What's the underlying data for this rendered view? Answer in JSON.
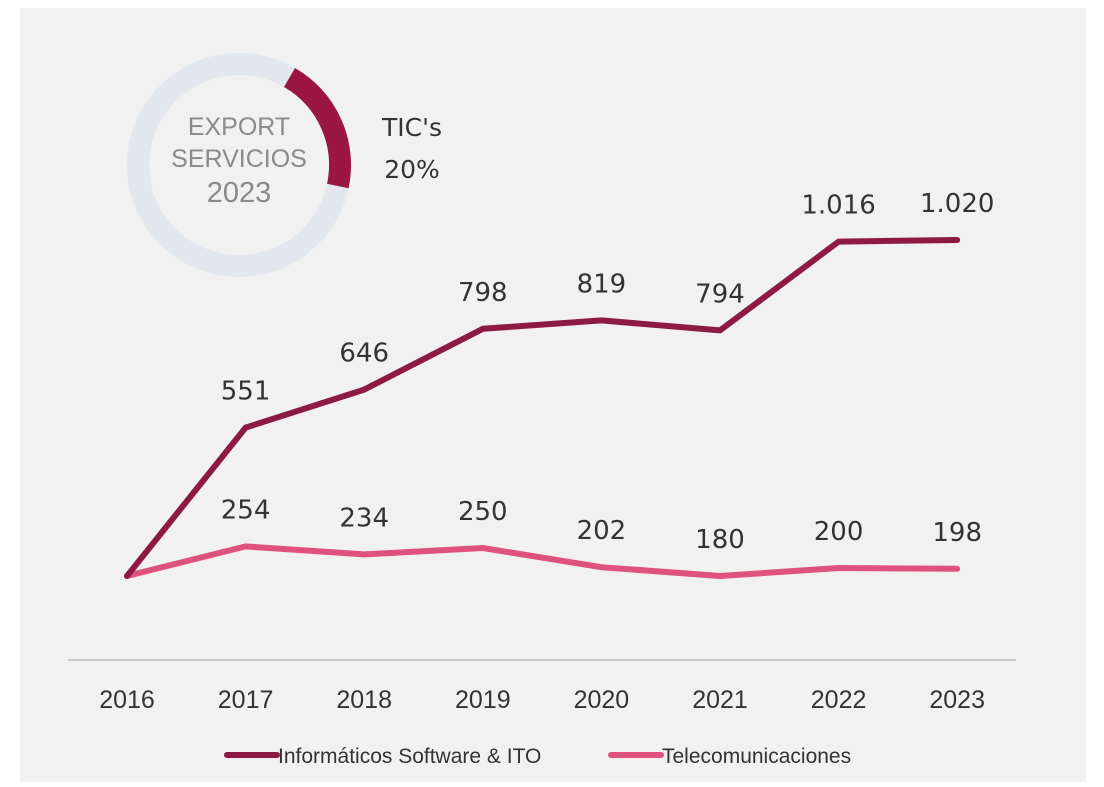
{
  "donut": {
    "line1": "EXPORT",
    "line2": "SERVICIOS",
    "line3": "2023",
    "share_value": 20,
    "share_label": "TIC's",
    "share_text": "20%",
    "ring_color": "#e2e8ed",
    "share_color": "#9b1643"
  },
  "chart_data": {
    "type": "line",
    "categories": [
      "2016",
      "2017",
      "2018",
      "2019",
      "2020",
      "2021",
      "2022",
      "2023"
    ],
    "series": [
      {
        "name": "Informáticos Software & ITO",
        "values": [
          null,
          551,
          646,
          798,
          819,
          794,
          1016,
          1020
        ],
        "labels": [
          "",
          "551",
          "646",
          "798",
          "819",
          "794",
          "1.016",
          "1.020"
        ],
        "color": "#8d1a44"
      },
      {
        "name": "Telecomunicaciones",
        "values": [
          null,
          254,
          234,
          250,
          202,
          180,
          200,
          198
        ],
        "labels": [
          "",
          "254",
          "234",
          "250",
          "202",
          "180",
          "200",
          "198"
        ],
        "color": "#e0527e"
      }
    ],
    "start_point_shared": true,
    "grid": false,
    "legend_position": "bottom",
    "title": "",
    "xlabel": "",
    "ylabel": ""
  }
}
